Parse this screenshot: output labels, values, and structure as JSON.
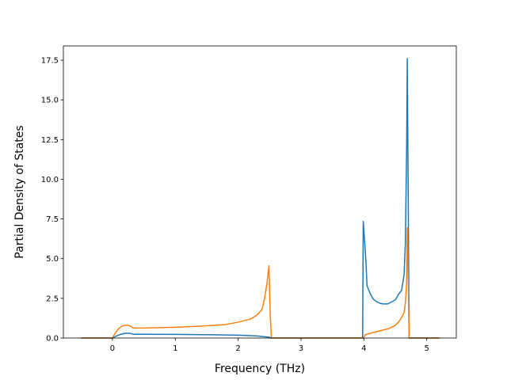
{
  "chart_data": {
    "type": "line",
    "title": "",
    "xlabel": "Frequency (THz)",
    "ylabel": "Partial Density of States",
    "xlim": [
      -0.78,
      5.47
    ],
    "ylim": [
      0,
      18.4
    ],
    "xticks": [
      {
        "value": 0,
        "label": "0"
      },
      {
        "value": 1,
        "label": "1"
      },
      {
        "value": 2,
        "label": "2"
      },
      {
        "value": 3,
        "label": "3"
      },
      {
        "value": 4,
        "label": "4"
      },
      {
        "value": 5,
        "label": "5"
      }
    ],
    "yticks": [
      {
        "value": 0,
        "label": "0.0"
      },
      {
        "value": 2.5,
        "label": "2.5"
      },
      {
        "value": 5,
        "label": "5.0"
      },
      {
        "value": 7.5,
        "label": "7.5"
      },
      {
        "value": 10,
        "label": "10.0"
      },
      {
        "value": 12.5,
        "label": "12.5"
      },
      {
        "value": 15,
        "label": "15.0"
      },
      {
        "value": 17.5,
        "label": "17.5"
      }
    ],
    "grid": false,
    "legend": "none",
    "series": [
      {
        "color": "#1f77b4",
        "points": [
          [
            -0.5,
            0
          ],
          [
            0,
            0
          ],
          [
            0.05,
            0.1
          ],
          [
            0.12,
            0.22
          ],
          [
            0.2,
            0.3
          ],
          [
            0.28,
            0.3
          ],
          [
            0.33,
            0.24
          ],
          [
            0.5,
            0.24
          ],
          [
            1.0,
            0.23
          ],
          [
            1.5,
            0.21
          ],
          [
            2.0,
            0.18
          ],
          [
            2.3,
            0.13
          ],
          [
            2.5,
            0.05
          ],
          [
            2.52,
            0
          ],
          [
            3.98,
            0
          ],
          [
            3.99,
            7.35
          ],
          [
            4.03,
            5.0
          ],
          [
            4.05,
            3.3
          ],
          [
            4.1,
            2.8
          ],
          [
            4.15,
            2.45
          ],
          [
            4.2,
            2.3
          ],
          [
            4.25,
            2.2
          ],
          [
            4.3,
            2.15
          ],
          [
            4.38,
            2.15
          ],
          [
            4.45,
            2.3
          ],
          [
            4.5,
            2.4
          ],
          [
            4.55,
            2.75
          ],
          [
            4.6,
            3.0
          ],
          [
            4.64,
            4.0
          ],
          [
            4.66,
            6.0
          ],
          [
            4.68,
            12.0
          ],
          [
            4.69,
            17.6
          ],
          [
            4.7,
            12.0
          ],
          [
            4.72,
            0
          ],
          [
            5.2,
            0
          ]
        ]
      },
      {
        "color": "#ff7f0e",
        "points": [
          [
            -0.5,
            0
          ],
          [
            0,
            0
          ],
          [
            0.05,
            0.35
          ],
          [
            0.1,
            0.6
          ],
          [
            0.15,
            0.75
          ],
          [
            0.2,
            0.8
          ],
          [
            0.25,
            0.8
          ],
          [
            0.3,
            0.72
          ],
          [
            0.33,
            0.63
          ],
          [
            0.5,
            0.63
          ],
          [
            1.0,
            0.68
          ],
          [
            1.5,
            0.77
          ],
          [
            1.8,
            0.85
          ],
          [
            2.0,
            1.0
          ],
          [
            2.2,
            1.2
          ],
          [
            2.3,
            1.45
          ],
          [
            2.38,
            1.8
          ],
          [
            2.42,
            2.5
          ],
          [
            2.46,
            3.5
          ],
          [
            2.49,
            4.55
          ],
          [
            2.51,
            1.5
          ],
          [
            2.53,
            0
          ],
          [
            3.99,
            0
          ],
          [
            4.02,
            0.2
          ],
          [
            4.1,
            0.3
          ],
          [
            4.2,
            0.4
          ],
          [
            4.3,
            0.5
          ],
          [
            4.4,
            0.6
          ],
          [
            4.5,
            0.8
          ],
          [
            4.55,
            1.0
          ],
          [
            4.6,
            1.3
          ],
          [
            4.64,
            1.6
          ],
          [
            4.66,
            2.2
          ],
          [
            4.68,
            3.5
          ],
          [
            4.69,
            6.95
          ],
          [
            4.7,
            5.0
          ],
          [
            4.72,
            0
          ],
          [
            5.2,
            0
          ]
        ]
      }
    ]
  }
}
